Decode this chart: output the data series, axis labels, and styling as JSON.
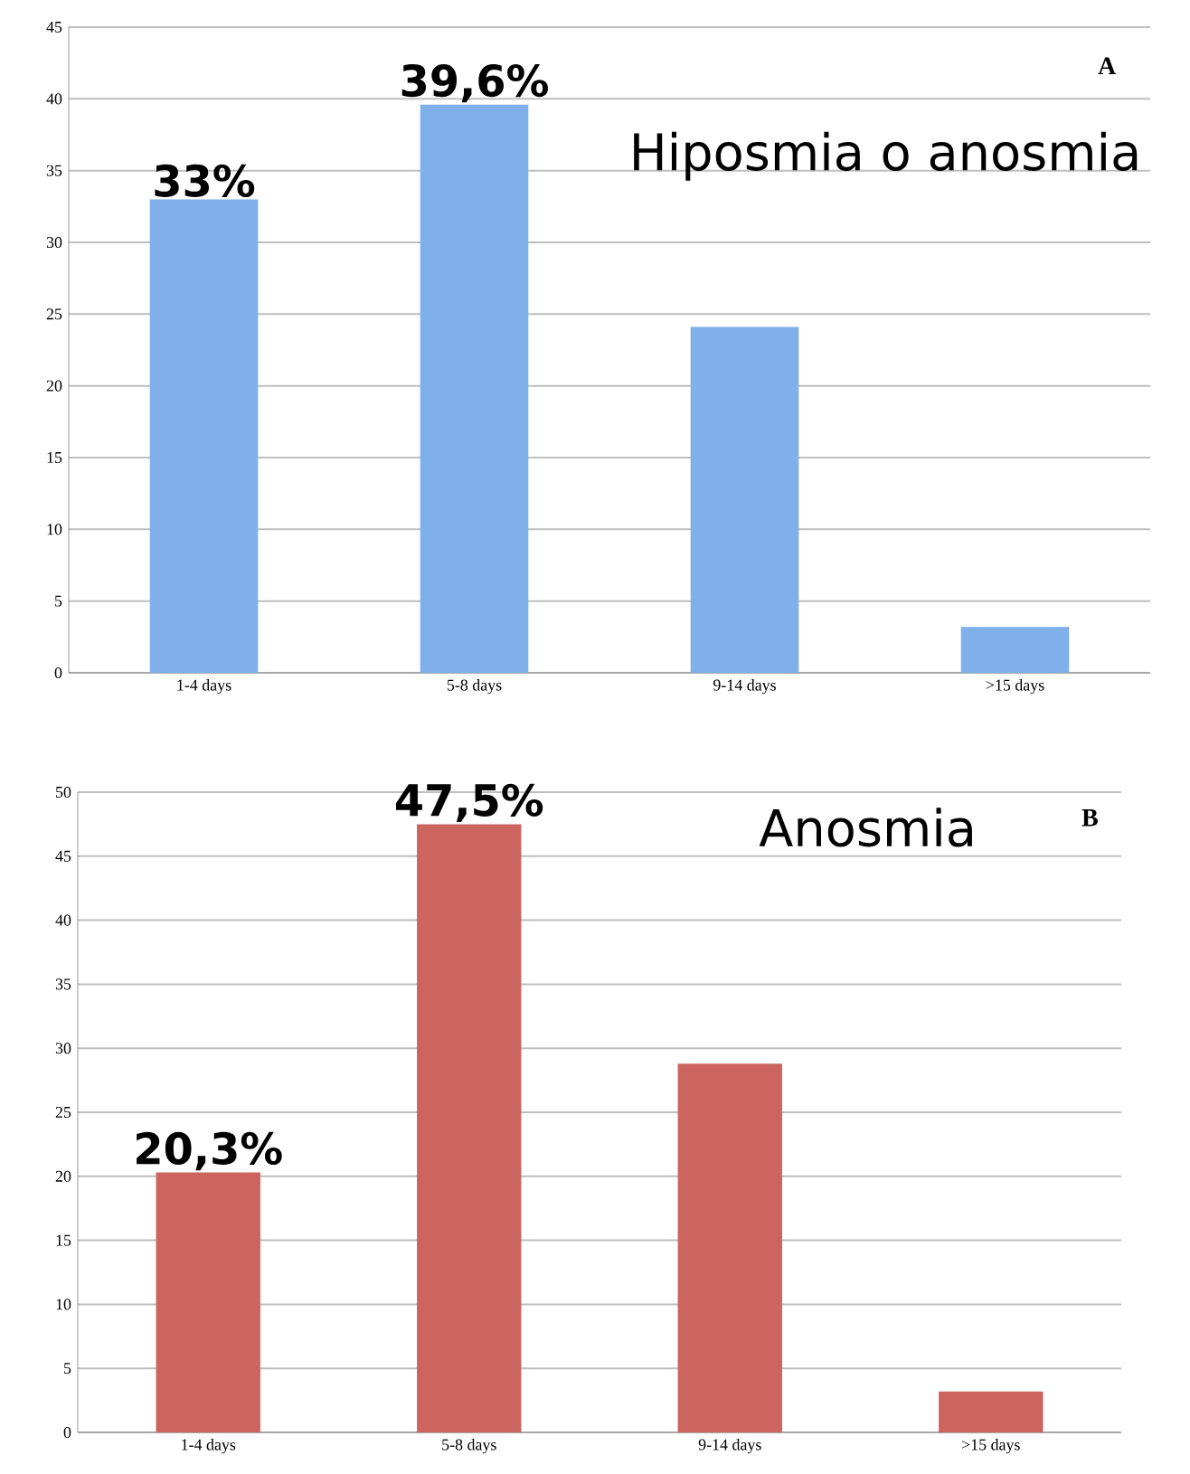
{
  "chart_data": [
    {
      "type": "bar",
      "title": "Hiposmia o anosmia",
      "annotations": [
        "A"
      ],
      "categories": [
        "1-4 days",
        "5-8 days",
        "9-14 days",
        ">15 days"
      ],
      "values": [
        33,
        39.6,
        24.1,
        3.2
      ],
      "value_labels": [
        "33%",
        "39,6%",
        null,
        null
      ],
      "color": "#7fb0ea",
      "ylim": [
        0,
        45
      ],
      "yticks": [
        0,
        5,
        10,
        15,
        20,
        25,
        30,
        35,
        40,
        45
      ],
      "grid": "y"
    },
    {
      "type": "bar",
      "title": "Anosmia",
      "annotations": [
        "B"
      ],
      "categories": [
        "1-4 days",
        "5-8 days",
        "9-14 days",
        ">15 days"
      ],
      "values": [
        20.3,
        47.5,
        28.8,
        3.2
      ],
      "value_labels": [
        "20,3%",
        "47,5%",
        null,
        null
      ],
      "color": "#cc6560",
      "ylim": [
        0,
        50
      ],
      "yticks": [
        0,
        5,
        10,
        15,
        20,
        25,
        30,
        35,
        40,
        45,
        50
      ],
      "grid": "y"
    }
  ]
}
